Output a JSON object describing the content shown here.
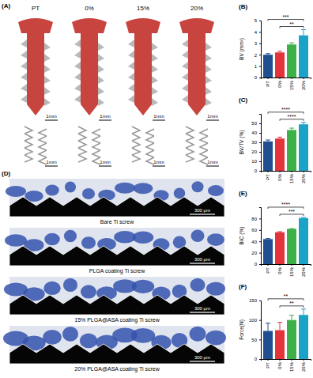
{
  "chart_data": [
    {
      "type": "bar",
      "panel": "(B)",
      "y_label": "BV (mm³)",
      "categories": [
        "PT",
        "0%",
        "15%",
        "20%"
      ],
      "values": [
        2.0,
        2.2,
        2.9,
        3.7
      ],
      "errors": [
        0.1,
        0.1,
        0.15,
        0.5
      ],
      "colors": [
        "#1f4f8f",
        "#e2343a",
        "#3db048",
        "#1aa3c6"
      ],
      "ylim": [
        0,
        5
      ],
      "yticks": [
        0,
        1,
        2,
        3,
        4,
        5
      ],
      "annotations": [
        {
          "text": "**",
          "from": "0%",
          "to": "20%"
        },
        {
          "text": "***",
          "from": "PT",
          "to": "20%"
        }
      ]
    },
    {
      "type": "bar",
      "panel": "(C)",
      "y_label": "BV/TV (%)",
      "categories": [
        "PT",
        "0%",
        "15%",
        "20%"
      ],
      "values": [
        31,
        34,
        43,
        49
      ],
      "errors": [
        1.5,
        1.5,
        2,
        2
      ],
      "colors": [
        "#1f4f8f",
        "#e2343a",
        "#3db048",
        "#1aa3c6"
      ],
      "ylim": [
        0,
        60
      ],
      "yticks": [
        0,
        10,
        20,
        30,
        40,
        50
      ],
      "annotations": [
        {
          "text": "****",
          "from": "0%",
          "to": "20%"
        },
        {
          "text": "****",
          "from": "PT",
          "to": "20%"
        }
      ]
    },
    {
      "type": "bar",
      "panel": "(E)",
      "y_label": "BIC (%)",
      "categories": [
        "PT",
        "0%",
        "15%",
        "20%"
      ],
      "values": [
        44,
        56,
        62,
        81
      ],
      "errors": [
        1,
        1,
        0.5,
        1
      ],
      "colors": [
        "#1f4f8f",
        "#e2343a",
        "#3db048",
        "#1aa3c6"
      ],
      "ylim": [
        0,
        100
      ],
      "yticks": [
        0,
        20,
        40,
        60,
        80
      ],
      "annotations": [
        {
          "text": "***",
          "from": "0%",
          "to": "20%"
        },
        {
          "text": "****",
          "from": "PT",
          "to": "20%"
        }
      ]
    },
    {
      "type": "bar",
      "panel": "(F)",
      "y_label": "Force(N)",
      "categories": [
        "PT",
        "0%",
        "15%",
        "20%"
      ],
      "values": [
        72,
        74,
        100,
        113
      ],
      "errors": [
        20,
        20,
        12,
        15
      ],
      "colors": [
        "#1f4f8f",
        "#e2343a",
        "#3db048",
        "#1aa3c6"
      ],
      "ylim": [
        0,
        150
      ],
      "yticks": [
        0,
        50,
        100,
        150
      ],
      "annotations": [
        {
          "text": "**",
          "from": "0%",
          "to": "20%"
        },
        {
          "text": "**",
          "from": "PT",
          "to": "20%"
        }
      ]
    }
  ],
  "panel_a": {
    "label": "(A)",
    "groups": [
      "PT",
      "0%",
      "15%",
      "20%"
    ],
    "scale_bar": "1mm"
  },
  "panel_d": {
    "label": "(D)",
    "captions": [
      "Bare Ti screw",
      "PLGA coating Ti screw",
      "15% PLGA@ASA coating Ti screw",
      "20% PLGA@ASA coating Ti screw"
    ],
    "scale_bar": "300 μm"
  }
}
